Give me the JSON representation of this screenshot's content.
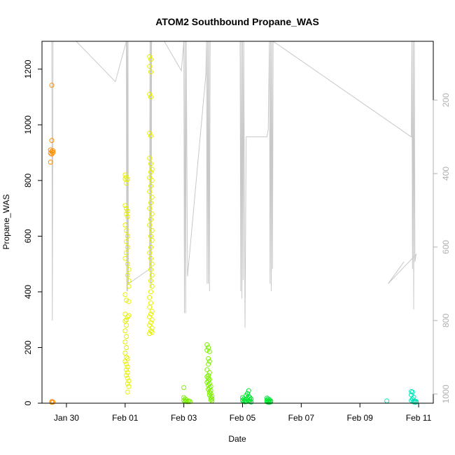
{
  "chart_data": {
    "type": "scatter",
    "title": "ATOM2 Southbound Propane_WAS",
    "xlabel": "Date",
    "ylabel": "Propane_WAS",
    "x_ticks": [
      "Jan 30",
      "Feb 01",
      "Feb 03",
      "Feb 05",
      "Feb 07",
      "Feb 09",
      "Feb 11"
    ],
    "y_ticks": [
      "0",
      "200",
      "400",
      "600",
      "800",
      "1000",
      "1200"
    ],
    "y2_ticks": [
      "200",
      "400",
      "600",
      "800",
      "1000"
    ],
    "xlim": [
      "2016-01-29 04:00",
      "2016-02-11 12:00"
    ],
    "ylim": [
      0,
      1300
    ],
    "y2lim": [
      1025,
      40
    ],
    "y2_reversed": true,
    "grid": false,
    "colors": {
      "axis": "#000000",
      "secondary_axis": "#b0b0b0",
      "altitude_line": "#c8c8c8"
    },
    "series": [
      {
        "color": "#ff8c00",
        "points": [
          [
            "2016-01-29 12:00",
            1142
          ],
          [
            "2016-01-29 12:00",
            944
          ],
          [
            "2016-01-29 11:00",
            910
          ],
          [
            "2016-01-29 12:00",
            905
          ],
          [
            "2016-01-29 13:00",
            900
          ],
          [
            "2016-01-29 11:00",
            898
          ],
          [
            "2016-01-29 12:00",
            895
          ],
          [
            "2016-01-29 13:00",
            907
          ],
          [
            "2016-01-29 11:00",
            866
          ],
          [
            "2016-01-29 12:00",
            6
          ],
          [
            "2016-01-29 13:00",
            4
          ],
          [
            "2016-01-29 12:00",
            3
          ]
        ]
      },
      {
        "color": "#e6f000",
        "points": [
          [
            "2016-02-01 00:00",
            820
          ],
          [
            "2016-02-01 01:00",
            812
          ],
          [
            "2016-02-01 00:00",
            806
          ],
          [
            "2016-02-01 02:00",
            805
          ],
          [
            "2016-02-01 01:00",
            790
          ],
          [
            "2016-02-01 00:00",
            710
          ],
          [
            "2016-02-01 01:00",
            700
          ],
          [
            "2016-02-01 02:00",
            690
          ],
          [
            "2016-02-01 01:00",
            680
          ],
          [
            "2016-02-01 02:00",
            670
          ],
          [
            "2016-02-01 00:00",
            640
          ],
          [
            "2016-02-01 01:00",
            620
          ],
          [
            "2016-02-01 02:00",
            600
          ],
          [
            "2016-02-01 01:00",
            580
          ],
          [
            "2016-02-01 02:00",
            560
          ],
          [
            "2016-02-01 01:00",
            540
          ],
          [
            "2016-02-01 00:00",
            520
          ],
          [
            "2016-02-01 02:00",
            500
          ],
          [
            "2016-02-01 03:00",
            480
          ],
          [
            "2016-02-01 02:00",
            460
          ],
          [
            "2016-02-01 03:00",
            440
          ],
          [
            "2016-02-01 03:00",
            420
          ],
          [
            "2016-02-01 00:00",
            390
          ],
          [
            "2016-02-01 01:00",
            370
          ],
          [
            "2016-02-01 03:00",
            365
          ],
          [
            "2016-02-01 00:00",
            320
          ],
          [
            "2016-02-01 02:00",
            310
          ],
          [
            "2016-02-01 03:00",
            315
          ],
          [
            "2016-02-01 01:00",
            300
          ],
          [
            "2016-02-01 00:00",
            295
          ],
          [
            "2016-02-01 01:00",
            280
          ],
          [
            "2016-02-01 00:00",
            260
          ],
          [
            "2016-02-01 01:00",
            240
          ],
          [
            "2016-02-01 00:00",
            220
          ],
          [
            "2016-02-01 01:00",
            200
          ],
          [
            "2016-02-01 00:00",
            180
          ],
          [
            "2016-02-01 01:00",
            165
          ],
          [
            "2016-02-01 02:00",
            160
          ],
          [
            "2016-02-01 00:00",
            150
          ],
          [
            "2016-02-01 01:00",
            140
          ],
          [
            "2016-02-01 02:00",
            130
          ],
          [
            "2016-02-01 01:00",
            120
          ],
          [
            "2016-02-01 02:00",
            110
          ],
          [
            "2016-02-01 01:00",
            100
          ],
          [
            "2016-02-01 02:00",
            90
          ],
          [
            "2016-02-01 03:00",
            80
          ],
          [
            "2016-02-01 02:00",
            70
          ],
          [
            "2016-02-01 03:00",
            60
          ],
          [
            "2016-02-01 02:00",
            40
          ],
          [
            "2016-02-01 20:00",
            1245
          ],
          [
            "2016-02-01 21:00",
            1235
          ],
          [
            "2016-02-01 20:00",
            1210
          ],
          [
            "2016-02-01 21:00",
            1190
          ],
          [
            "2016-02-01 20:00",
            1110
          ],
          [
            "2016-02-01 21:00",
            1100
          ],
          [
            "2016-02-01 20:00",
            970
          ],
          [
            "2016-02-01 21:00",
            960
          ],
          [
            "2016-02-01 20:00",
            880
          ],
          [
            "2016-02-01 21:00",
            860
          ],
          [
            "2016-02-01 22:00",
            840
          ],
          [
            "2016-02-01 21:00",
            830
          ],
          [
            "2016-02-01 20:00",
            810
          ],
          [
            "2016-02-01 22:00",
            800
          ],
          [
            "2016-02-01 21:00",
            780
          ],
          [
            "2016-02-01 20:00",
            760
          ],
          [
            "2016-02-01 22:00",
            740
          ],
          [
            "2016-02-01 21:00",
            720
          ],
          [
            "2016-02-01 20:00",
            700
          ],
          [
            "2016-02-01 22:00",
            680
          ],
          [
            "2016-02-01 21:00",
            660
          ],
          [
            "2016-02-01 20:00",
            640
          ],
          [
            "2016-02-01 22:00",
            620
          ],
          [
            "2016-02-01 21:00",
            600
          ],
          [
            "2016-02-01 22:00",
            585
          ],
          [
            "2016-02-01 21:00",
            560
          ],
          [
            "2016-02-01 20:00",
            540
          ],
          [
            "2016-02-01 21:00",
            520
          ],
          [
            "2016-02-01 22:00",
            500
          ],
          [
            "2016-02-01 21:00",
            480
          ],
          [
            "2016-02-01 22:00",
            460
          ],
          [
            "2016-02-01 21:00",
            440
          ],
          [
            "2016-02-01 22:00",
            420
          ],
          [
            "2016-02-01 21:00",
            400
          ],
          [
            "2016-02-01 20:00",
            380
          ],
          [
            "2016-02-01 21:00",
            360
          ],
          [
            "2016-02-01 20:00",
            345
          ],
          [
            "2016-02-01 22:00",
            330
          ],
          [
            "2016-02-01 21:00",
            320
          ],
          [
            "2016-02-01 20:00",
            310
          ],
          [
            "2016-02-01 22:00",
            300
          ],
          [
            "2016-02-01 21:00",
            290
          ],
          [
            "2016-02-01 20:00",
            280
          ],
          [
            "2016-02-01 22:00",
            270
          ],
          [
            "2016-02-01 21:00",
            260
          ],
          [
            "2016-02-01 20:00",
            250
          ],
          [
            "2016-02-01 22:00",
            255
          ]
        ]
      },
      {
        "color": "#7cf000",
        "points": [
          [
            "2016-02-03 00:00",
            56
          ],
          [
            "2016-02-03 00:00",
            20
          ],
          [
            "2016-02-03 01:00",
            15
          ],
          [
            "2016-02-03 02:00",
            12
          ],
          [
            "2016-02-03 00:00",
            10
          ],
          [
            "2016-02-03 01:00",
            8
          ],
          [
            "2016-02-03 02:00",
            6
          ],
          [
            "2016-02-03 03:00",
            5
          ],
          [
            "2016-02-03 04:00",
            8
          ],
          [
            "2016-02-03 05:00",
            6
          ],
          [
            "2016-02-03 19:00",
            210
          ],
          [
            "2016-02-03 20:00",
            200
          ],
          [
            "2016-02-03 19:00",
            190
          ],
          [
            "2016-02-03 21:00",
            185
          ],
          [
            "2016-02-03 20:00",
            160
          ],
          [
            "2016-02-03 21:00",
            150
          ],
          [
            "2016-02-03 20:00",
            140
          ],
          [
            "2016-02-03 19:00",
            120
          ],
          [
            "2016-02-03 21:00",
            110
          ],
          [
            "2016-02-03 20:00",
            100
          ],
          [
            "2016-02-03 19:00",
            95
          ],
          [
            "2016-02-03 20:00",
            90
          ],
          [
            "2016-02-03 21:00",
            85
          ],
          [
            "2016-02-03 20:00",
            80
          ],
          [
            "2016-02-03 19:00",
            75
          ],
          [
            "2016-02-03 21:00",
            70
          ],
          [
            "2016-02-03 20:00",
            65
          ],
          [
            "2016-02-03 22:00",
            60
          ],
          [
            "2016-02-03 21:00",
            55
          ],
          [
            "2016-02-03 20:00",
            50
          ],
          [
            "2016-02-03 22:00",
            45
          ],
          [
            "2016-02-03 21:00",
            40
          ],
          [
            "2016-02-03 22:00",
            35
          ],
          [
            "2016-02-03 21:00",
            30
          ],
          [
            "2016-02-03 23:00",
            25
          ],
          [
            "2016-02-03 22:00",
            20
          ],
          [
            "2016-02-03 23:00",
            15
          ],
          [
            "2016-02-03 22:00",
            12
          ],
          [
            "2016-02-03 23:00",
            8
          ]
        ]
      },
      {
        "color": "#00e632",
        "points": [
          [
            "2016-02-05 00:00",
            20
          ],
          [
            "2016-02-05 01:00",
            15
          ],
          [
            "2016-02-05 02:00",
            12
          ],
          [
            "2016-02-05 00:00",
            10
          ],
          [
            "2016-02-05 01:00",
            8
          ],
          [
            "2016-02-05 03:00",
            6
          ],
          [
            "2016-02-05 02:00",
            5
          ],
          [
            "2016-02-05 04:00",
            35
          ],
          [
            "2016-02-05 05:00",
            45
          ],
          [
            "2016-02-05 05:00",
            25
          ],
          [
            "2016-02-05 04:00",
            18
          ],
          [
            "2016-02-05 06:00",
            12
          ],
          [
            "2016-02-05 05:00",
            8
          ],
          [
            "2016-02-05 06:00",
            6
          ],
          [
            "2016-02-05 07:00",
            4
          ],
          [
            "2016-02-05 03:00",
            28
          ],
          [
            "2016-02-05 06:00",
            20
          ],
          [
            "2016-02-05 07:00",
            15
          ],
          [
            "2016-02-05 20:00",
            18
          ],
          [
            "2016-02-05 21:00",
            15
          ],
          [
            "2016-02-05 22:00",
            12
          ],
          [
            "2016-02-05 20:00",
            10
          ],
          [
            "2016-02-05 21:00",
            8
          ],
          [
            "2016-02-05 22:00",
            6
          ],
          [
            "2016-02-05 23:00",
            5
          ],
          [
            "2016-02-05 21:00",
            4
          ],
          [
            "2016-02-05 22:00",
            3
          ],
          [
            "2016-02-05 23:00",
            8
          ],
          [
            "2016-02-05 20:00",
            5
          ]
        ]
      },
      {
        "color": "#00e6b4",
        "points": [
          [
            "2016-02-09 22:00",
            8
          ],
          [
            "2016-02-10 18:00",
            42
          ],
          [
            "2016-02-10 19:00",
            40
          ],
          [
            "2016-02-10 18:00",
            30
          ],
          [
            "2016-02-10 20:00",
            22
          ],
          [
            "2016-02-10 19:00",
            15
          ],
          [
            "2016-02-10 18:00",
            10
          ],
          [
            "2016-02-10 20:00",
            8
          ],
          [
            "2016-02-10 21:00",
            6
          ],
          [
            "2016-02-10 20:00",
            5
          ],
          [
            "2016-02-10 22:00",
            4
          ],
          [
            "2016-02-10 21:00",
            3
          ],
          [
            "2016-02-10 22:00",
            6
          ]
        ]
      }
    ],
    "altitude_profile": [
      [
        "2016-01-29 12:00",
        40
      ],
      [
        "2016-01-29 12:30",
        800
      ],
      [
        "2016-01-29 13:00",
        40
      ],
      [
        "2016-01-30 08:00",
        40
      ],
      [
        "2016-01-31 16:00",
        150
      ],
      [
        "2016-02-01 01:00",
        40
      ],
      [
        "2016-02-01 01:20",
        720
      ],
      [
        "2016-02-01 01:40",
        40
      ],
      [
        "2016-02-01 02:00",
        720
      ],
      [
        "2016-02-01 02:20",
        40
      ],
      [
        "2016-02-01 02:40",
        700
      ],
      [
        "2016-02-01 20:00",
        660
      ],
      [
        "2016-02-01 20:20",
        40
      ],
      [
        "2016-02-01 20:40",
        700
      ],
      [
        "2016-02-01 21:00",
        40
      ],
      [
        "2016-02-01 21:20",
        710
      ],
      [
        "2016-02-01 21:40",
        40
      ],
      [
        "2016-02-02 08:00",
        40
      ],
      [
        "2016-02-02 22:00",
        120
      ],
      [
        "2016-02-03 00:00",
        40
      ],
      [
        "2016-02-03 00:30",
        780
      ],
      [
        "2016-02-03 01:00",
        40
      ],
      [
        "2016-02-03 01:30",
        780
      ],
      [
        "2016-02-03 02:00",
        40
      ],
      [
        "2016-02-03 03:00",
        680
      ],
      [
        "2016-02-03 18:00",
        130
      ],
      [
        "2016-02-03 18:30",
        40
      ],
      [
        "2016-02-03 19:00",
        700
      ],
      [
        "2016-02-03 19:30",
        40
      ],
      [
        "2016-02-03 20:00",
        700
      ],
      [
        "2016-02-03 20:30",
        40
      ],
      [
        "2016-02-03 21:00",
        720
      ],
      [
        "2016-02-03 21:30",
        40
      ],
      [
        "2016-02-04 22:00",
        40
      ],
      [
        "2016-02-04 22:30",
        720
      ],
      [
        "2016-02-04 23:00",
        40
      ],
      [
        "2016-02-04 23:30",
        740
      ],
      [
        "2016-02-05 00:00",
        40
      ],
      [
        "2016-02-05 00:30",
        690
      ],
      [
        "2016-02-05 01:00",
        40
      ],
      [
        "2016-02-05 02:00",
        820
      ],
      [
        "2016-02-05 03:00",
        300
      ],
      [
        "2016-02-05 20:00",
        300
      ],
      [
        "2016-02-05 21:00",
        280
      ],
      [
        "2016-02-05 22:00",
        40
      ],
      [
        "2016-02-05 22:30",
        700
      ],
      [
        "2016-02-05 23:00",
        40
      ],
      [
        "2016-02-05 23:30",
        720
      ],
      [
        "2016-02-06 00:00",
        40
      ],
      [
        "2016-02-06 00:30",
        660
      ],
      [
        "2016-02-06 01:00",
        40
      ],
      [
        "2016-02-10 18:00",
        300
      ],
      [
        "2016-02-10 18:30",
        40
      ],
      [
        "2016-02-10 19:00",
        660
      ],
      [
        "2016-02-10 19:30",
        40
      ],
      [
        "2016-02-10 20:00",
        770
      ],
      [
        "2016-02-10 20:30",
        40
      ],
      [
        "2016-02-10 21:00",
        640
      ],
      [
        "2016-02-10 22:00",
        620
      ],
      [
        "2016-02-09 23:00",
        700
      ],
      [
        "2016-02-10 12:00",
        640
      ]
    ]
  }
}
